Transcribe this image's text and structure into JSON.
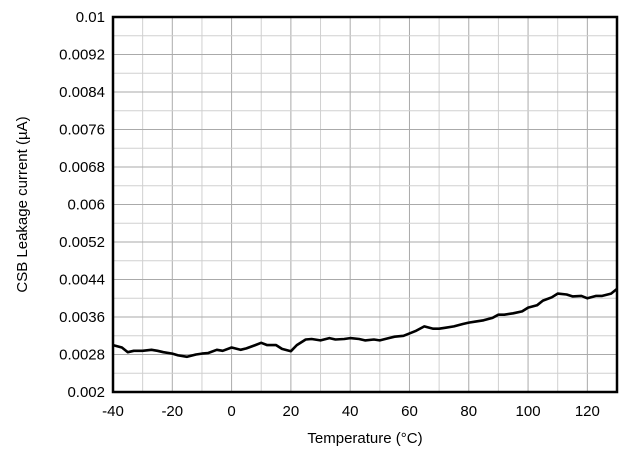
{
  "chart_data": {
    "type": "line",
    "title": "",
    "xlabel": "Temperature (°C)",
    "ylabel": "CSB Leakage current (µA)",
    "xlim": [
      -40,
      130
    ],
    "ylim": [
      0.002,
      0.01
    ],
    "grid": true,
    "x_ticks": [
      -40,
      -20,
      0,
      20,
      40,
      60,
      80,
      100,
      120
    ],
    "x_tick_labels": [
      "-40",
      "-20",
      "0",
      "20",
      "40",
      "60",
      "80",
      "100",
      "120"
    ],
    "y_ticks": [
      0.002,
      0.0028,
      0.0036,
      0.0044,
      0.0052,
      0.006,
      0.0068,
      0.0076,
      0.0084,
      0.0092,
      0.01
    ],
    "y_tick_labels": [
      "0.002",
      "0.0028",
      "0.0036",
      "0.0044",
      "0.0052",
      "0.006",
      "0.0068",
      "0.0076",
      "0.0084",
      "0.0092",
      "0.01"
    ],
    "series": [
      {
        "color": "#000000",
        "x": [
          -40,
          -37,
          -35,
          -33,
          -30,
          -27,
          -25,
          -23,
          -20,
          -18,
          -15,
          -12,
          -10,
          -8,
          -5,
          -3,
          0,
          3,
          5,
          8,
          10,
          12,
          15,
          17,
          20,
          22,
          25,
          27,
          30,
          33,
          35,
          38,
          40,
          43,
          45,
          48,
          50,
          53,
          55,
          58,
          60,
          62,
          65,
          68,
          70,
          72,
          75,
          78,
          80,
          82,
          85,
          88,
          90,
          92,
          95,
          98,
          100,
          103,
          105,
          108,
          110,
          113,
          115,
          118,
          120,
          123,
          125,
          128,
          130
        ],
        "y": [
          0.003,
          0.00295,
          0.00285,
          0.00288,
          0.00288,
          0.0029,
          0.00288,
          0.00285,
          0.00282,
          0.00278,
          0.00275,
          0.0028,
          0.00282,
          0.00283,
          0.0029,
          0.00288,
          0.00295,
          0.0029,
          0.00293,
          0.003,
          0.00305,
          0.003,
          0.003,
          0.00292,
          0.00287,
          0.003,
          0.00312,
          0.00313,
          0.0031,
          0.00315,
          0.00312,
          0.00313,
          0.00315,
          0.00313,
          0.0031,
          0.00312,
          0.0031,
          0.00315,
          0.00318,
          0.0032,
          0.00325,
          0.0033,
          0.0034,
          0.00335,
          0.00335,
          0.00337,
          0.0034,
          0.00345,
          0.00348,
          0.0035,
          0.00353,
          0.00358,
          0.00365,
          0.00365,
          0.00368,
          0.00372,
          0.0038,
          0.00385,
          0.00395,
          0.00402,
          0.0041,
          0.00408,
          0.00404,
          0.00405,
          0.004,
          0.00405,
          0.00405,
          0.0041,
          0.0042
        ]
      }
    ]
  }
}
